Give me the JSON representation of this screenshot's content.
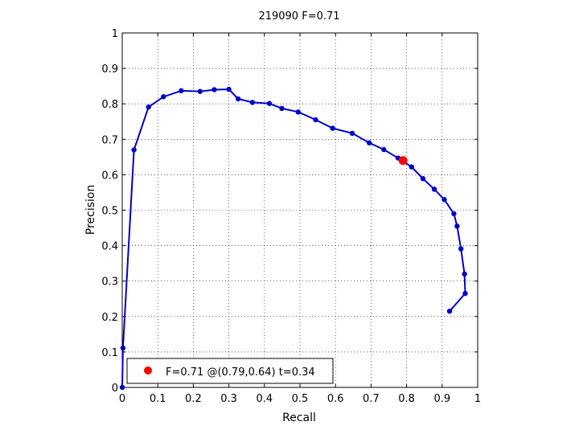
{
  "chart_data": {
    "type": "line",
    "title": "219090 F=0.71",
    "xlabel": "Recall",
    "ylabel": "Precision",
    "xlim": [
      0,
      1
    ],
    "ylim": [
      0,
      1
    ],
    "grid": true,
    "legend_position": "bottom-left",
    "x_ticks": [
      "0",
      "0.1",
      "0.2",
      "0.3",
      "0.4",
      "0.5",
      "0.6",
      "0.7",
      "0.8",
      "0.9",
      "1"
    ],
    "y_ticks": [
      "0",
      "0.1",
      "0.2",
      "0.3",
      "0.4",
      "0.5",
      "0.6",
      "0.7",
      "0.8",
      "0.9",
      "1"
    ],
    "series": [
      {
        "color": "#0000cc",
        "points": [
          [
            0.0,
            0.0
          ],
          [
            0.002,
            0.111
          ],
          [
            0.033,
            0.67
          ],
          [
            0.074,
            0.791
          ],
          [
            0.116,
            0.82
          ],
          [
            0.166,
            0.837
          ],
          [
            0.219,
            0.835
          ],
          [
            0.259,
            0.84
          ],
          [
            0.3,
            0.841
          ],
          [
            0.326,
            0.814
          ],
          [
            0.366,
            0.804
          ],
          [
            0.414,
            0.801
          ],
          [
            0.449,
            0.787
          ],
          [
            0.495,
            0.777
          ],
          [
            0.544,
            0.755
          ],
          [
            0.592,
            0.731
          ],
          [
            0.647,
            0.717
          ],
          [
            0.695,
            0.69
          ],
          [
            0.736,
            0.671
          ],
          [
            0.776,
            0.647
          ],
          [
            0.814,
            0.622
          ],
          [
            0.846,
            0.589
          ],
          [
            0.878,
            0.559
          ],
          [
            0.906,
            0.53
          ],
          [
            0.933,
            0.49
          ],
          [
            0.942,
            0.455
          ],
          [
            0.953,
            0.391
          ],
          [
            0.963,
            0.32
          ],
          [
            0.965,
            0.265
          ],
          [
            0.921,
            0.215
          ]
        ]
      }
    ],
    "highlight": {
      "x": 0.79,
      "y": 0.64,
      "color": "#ff0000",
      "legend_label": "F=0.71 @(0.79,0.64) t=0.34"
    }
  }
}
